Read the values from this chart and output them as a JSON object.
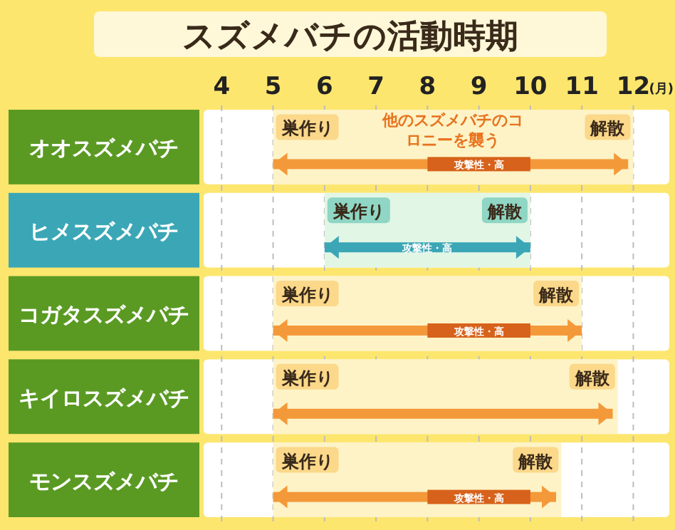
{
  "chart_data": {
    "type": "bar",
    "orientation": "horizontal",
    "title": "スズメバチの活動時期",
    "xlabel": "(月)",
    "categories": [
      "オオスズメバチ",
      "ヒメスズメバチ",
      "コガタスズメバチ",
      "キイロスズメバチ",
      "モンスズメバチ"
    ],
    "series": [
      {
        "colors": [
          "#fdf3c6",
          "#e2f6e6",
          "#fdf3c6",
          "#fdf3c6",
          "#fdf3c6"
        ],
        "base": [
          5,
          6,
          5,
          5,
          5
        ],
        "values": [
          7,
          4,
          6,
          6.7,
          5.6
        ]
      },
      {
        "colors": [
          "#f4993a",
          "#3ba7b6",
          "#f4993a",
          "#f4993a",
          "#f4993a"
        ],
        "base": [
          5,
          6,
          5,
          5,
          5
        ],
        "values": [
          6.9,
          4,
          6,
          6.6,
          5.5
        ],
        "value_labels": [
          null,
          "攻撃性・高",
          null,
          null,
          null
        ]
      },
      {
        "color": "#d7621b",
        "base": [
          8,
          null,
          8,
          null,
          8
        ],
        "values": [
          2,
          null,
          2,
          null,
          2
        ],
        "value_labels": [
          "攻撃性・高",
          null,
          "攻撃性・高",
          null,
          "攻撃性・高"
        ]
      }
    ],
    "annotations": [
      {
        "text": "巣作り",
        "x": 5,
        "y": "オオスズメバチ"
      },
      {
        "text": "解散",
        "x": 12,
        "y": "オオスズメバチ"
      },
      "他のスズメバチのコロニーを襲う",
      {
        "text": "巣作り",
        "x": 6,
        "y": "ヒメスズメバチ"
      },
      {
        "text": "解散",
        "x": 10,
        "y": "ヒメスズメバチ"
      },
      {
        "text": "巣作り",
        "x": 5,
        "y": "コガタスズメバチ"
      },
      {
        "text": "解散",
        "x": 11,
        "y": "コガタスズメバチ"
      },
      {
        "text": "巣作り",
        "x": 5,
        "y": "キイロスズメバチ"
      },
      {
        "text": "解散",
        "x": 11.7,
        "y": "キイロスズメバチ"
      },
      {
        "text": "巣作り",
        "x": 5,
        "y": "モンスズメバチ"
      },
      {
        "text": "解散",
        "x": 10.6,
        "y": "モンスズメバチ"
      }
    ],
    "xlim": [
      3.65,
      12.7
    ],
    "xticks": [
      4,
      5,
      6,
      7,
      8,
      9,
      10,
      11,
      12
    ],
    "grid": "x"
  }
}
